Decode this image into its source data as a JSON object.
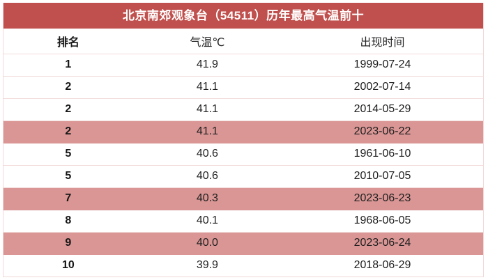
{
  "table": {
    "title": "北京南郊观象台（54511）历年最高气温前十",
    "columns": {
      "rank": "排名",
      "temp": "气温℃",
      "date": "出现时间"
    },
    "rows": [
      {
        "rank": "1",
        "temp": "41.9",
        "date": "1999-07-24",
        "highlight": false
      },
      {
        "rank": "2",
        "temp": "41.1",
        "date": "2002-07-14",
        "highlight": false
      },
      {
        "rank": "2",
        "temp": "41.1",
        "date": "2014-05-29",
        "highlight": false
      },
      {
        "rank": "2",
        "temp": "41.1",
        "date": "2023-06-22",
        "highlight": true
      },
      {
        "rank": "5",
        "temp": "40.6",
        "date": "1961-06-10",
        "highlight": false
      },
      {
        "rank": "5",
        "temp": "40.6",
        "date": "2010-07-05",
        "highlight": false
      },
      {
        "rank": "7",
        "temp": "40.3",
        "date": "2023-06-23",
        "highlight": true
      },
      {
        "rank": "8",
        "temp": "40.1",
        "date": "1968-06-05",
        "highlight": false
      },
      {
        "rank": "9",
        "temp": "40.0",
        "date": "2023-06-24",
        "highlight": true
      },
      {
        "rank": "10",
        "temp": "39.9",
        "date": "2018-06-29",
        "highlight": false
      }
    ],
    "colors": {
      "header_bg": "#C0504D",
      "highlight_bg": "#D99694",
      "separator": "#F2DCDB",
      "title_text": "#FFFFFF",
      "cell_text": "#1F1F1F"
    }
  },
  "chart_data": {
    "type": "table",
    "title": "北京南郊观象台（54511）历年最高气温前十",
    "columns": [
      "排名",
      "气温℃",
      "出现时间"
    ],
    "rows": [
      [
        "1",
        41.9,
        "1999-07-24"
      ],
      [
        "2",
        41.1,
        "2002-07-14"
      ],
      [
        "2",
        41.1,
        "2014-05-29"
      ],
      [
        "2",
        41.1,
        "2023-06-22"
      ],
      [
        "5",
        40.6,
        "1961-06-10"
      ],
      [
        "5",
        40.6,
        "2010-07-05"
      ],
      [
        "7",
        40.3,
        "2023-06-23"
      ],
      [
        "8",
        40.1,
        "1968-06-05"
      ],
      [
        "9",
        40.0,
        "2023-06-24"
      ],
      [
        "10",
        39.9,
        "2018-06-29"
      ]
    ],
    "highlighted_row_indices": [
      3,
      6,
      8
    ]
  }
}
